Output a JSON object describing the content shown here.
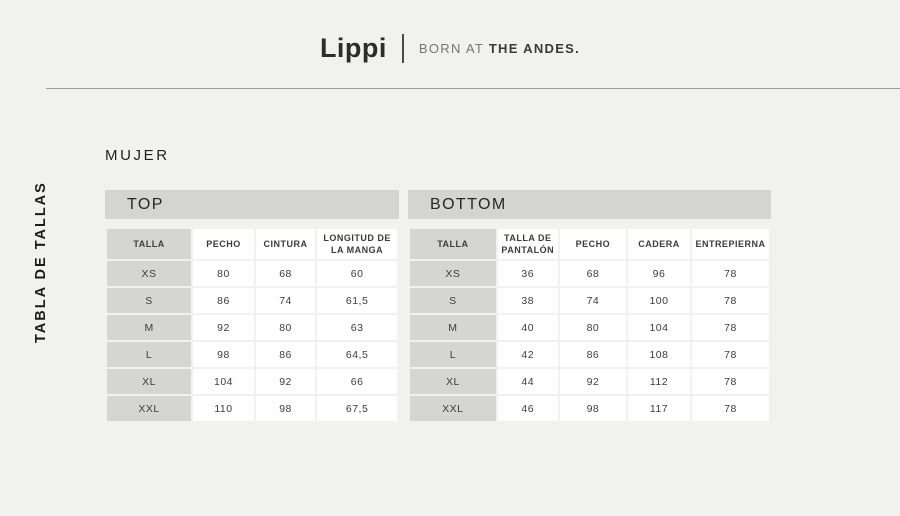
{
  "header": {
    "brand": "Lippi",
    "tagline_light": "BORN AT",
    "tagline_bold": "THE ANDES."
  },
  "sidebar_label": "TABLA DE TALLAS",
  "section_title": "MUJER",
  "colors": {
    "page_bg": "#f1f1ef",
    "header_bar_bg": "#d4d4d3",
    "label_cell_bg": "#d5d5d4",
    "cell_bg": "#fefefe",
    "text": "#3c3c3c",
    "divider_line": "#9e9e9e"
  },
  "tables": [
    {
      "title": "TOP",
      "columns": [
        "TALLA",
        "PECHO",
        "CINTURA",
        "LONGITUD DE LA MANGA"
      ],
      "rows": [
        [
          "XS",
          "80",
          "68",
          "60"
        ],
        [
          "S",
          "86",
          "74",
          "61,5"
        ],
        [
          "M",
          "92",
          "80",
          "63"
        ],
        [
          "L",
          "98",
          "86",
          "64,5"
        ],
        [
          "XL",
          "104",
          "92",
          "66"
        ],
        [
          "XXL",
          "110",
          "98",
          "67,5"
        ]
      ]
    },
    {
      "title": "BOTTOM",
      "columns": [
        "TALLA",
        "TALLA DE PANTALÓN",
        "PECHO",
        "CADERA",
        "ENTREPIERNA"
      ],
      "rows": [
        [
          "XS",
          "36",
          "68",
          "96",
          "78"
        ],
        [
          "S",
          "38",
          "74",
          "100",
          "78"
        ],
        [
          "M",
          "40",
          "80",
          "104",
          "78"
        ],
        [
          "L",
          "42",
          "86",
          "108",
          "78"
        ],
        [
          "XL",
          "44",
          "92",
          "112",
          "78"
        ],
        [
          "XXL",
          "46",
          "98",
          "117",
          "78"
        ]
      ]
    }
  ]
}
